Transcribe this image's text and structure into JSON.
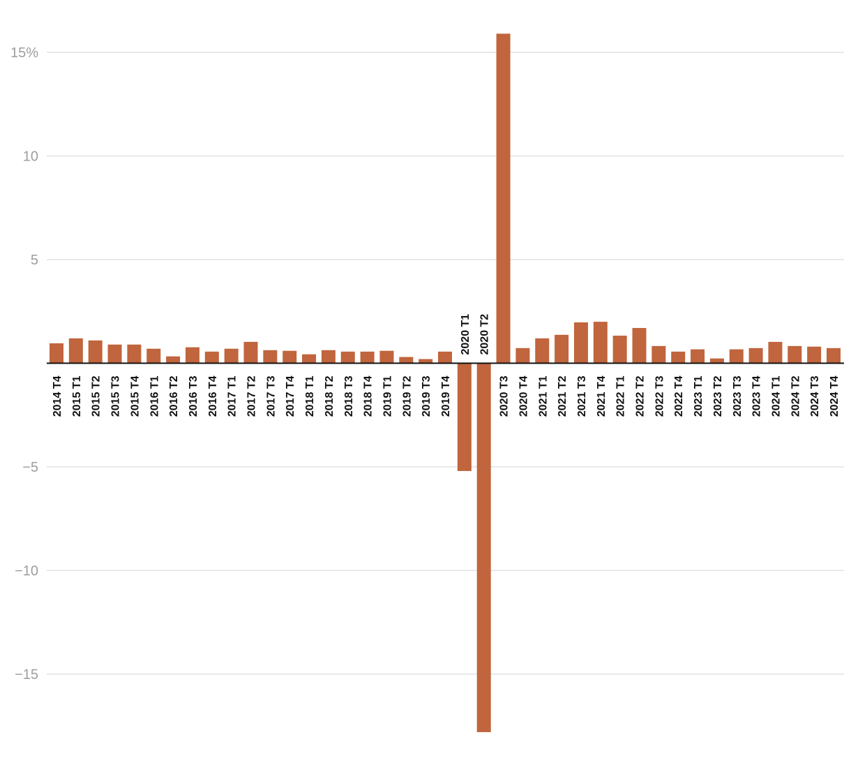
{
  "chart_data": {
    "type": "bar",
    "title": "",
    "xlabel": "",
    "ylabel": "",
    "ylim": [
      -18.0,
      16.0
    ],
    "yticks": [
      {
        "value": 15,
        "label": "15%"
      },
      {
        "value": 10,
        "label": "10"
      },
      {
        "value": 5,
        "label": "5"
      },
      {
        "value": -5,
        "label": "−5"
      },
      {
        "value": -10,
        "label": "−10"
      },
      {
        "value": -15,
        "label": "−15"
      }
    ],
    "grid": true,
    "bar_color": "#c0653d",
    "categories": [
      "2014 T4",
      "2015 T1",
      "2015 T2",
      "2015 T3",
      "2015 T4",
      "2016 T1",
      "2016 T2",
      "2016 T3",
      "2016 T4",
      "2017 T1",
      "2017 T2",
      "2017 T3",
      "2017 T4",
      "2018 T1",
      "2018 T2",
      "2018 T3",
      "2018 T4",
      "2019 T1",
      "2019 T2",
      "2019 T3",
      "2019 T4",
      "2020 T1",
      "2020 T2",
      "2020 T3",
      "2020 T4",
      "2021 T1",
      "2021 T2",
      "2021 T3",
      "2021 T4",
      "2022 T1",
      "2022 T2",
      "2022 T3",
      "2022 T4",
      "2023 T1",
      "2023 T2",
      "2023 T3",
      "2023 T4",
      "2024 T1",
      "2024 T2",
      "2024 T3",
      "2024 T4"
    ],
    "values": [
      0.96,
      1.2,
      1.1,
      0.9,
      0.9,
      0.7,
      0.33,
      0.77,
      0.56,
      0.7,
      1.03,
      0.63,
      0.6,
      0.43,
      0.63,
      0.56,
      0.56,
      0.6,
      0.3,
      0.2,
      0.56,
      -5.2,
      -17.8,
      15.9,
      0.73,
      1.2,
      1.37,
      1.97,
      2.0,
      1.33,
      1.7,
      0.83,
      0.56,
      0.67,
      0.23,
      0.67,
      0.73,
      1.03,
      0.83,
      0.8,
      0.73
    ]
  }
}
